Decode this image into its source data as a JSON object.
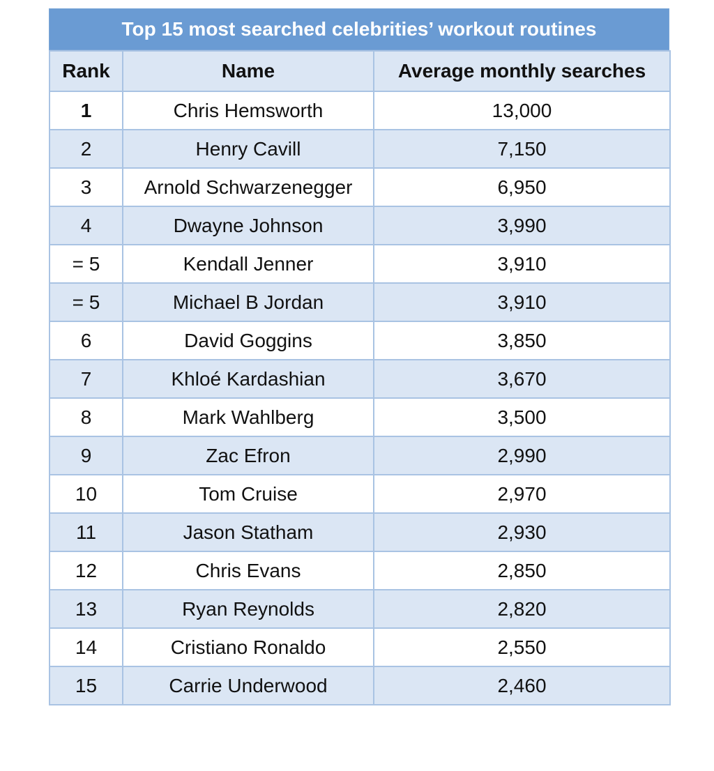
{
  "table": {
    "title": "Top 15 most searched celebrities’ workout routines",
    "headers": [
      "Rank",
      "Name",
      "Average monthly searches"
    ],
    "rows": [
      {
        "rank": "1",
        "name": "Chris Hemsworth",
        "searches": "13,000"
      },
      {
        "rank": "2",
        "name": "Henry Cavill",
        "searches": "7,150"
      },
      {
        "rank": "3",
        "name": "Arnold Schwarzenegger",
        "searches": "6,950"
      },
      {
        "rank": "4",
        "name": "Dwayne Johnson",
        "searches": "3,990"
      },
      {
        "rank": "= 5",
        "name": "Kendall Jenner",
        "searches": "3,910"
      },
      {
        "rank": "= 5",
        "name": "Michael B Jordan",
        "searches": "3,910"
      },
      {
        "rank": "6",
        "name": "David Goggins",
        "searches": "3,850"
      },
      {
        "rank": "7",
        "name": "Khloé Kardashian",
        "searches": "3,670"
      },
      {
        "rank": "8",
        "name": "Mark Wahlberg",
        "searches": "3,500"
      },
      {
        "rank": "9",
        "name": "Zac Efron",
        "searches": "2,990"
      },
      {
        "rank": "10",
        "name": "Tom Cruise",
        "searches": "2,970"
      },
      {
        "rank": "11",
        "name": "Jason Statham",
        "searches": "2,930"
      },
      {
        "rank": "12",
        "name": "Chris Evans",
        "searches": "2,850"
      },
      {
        "rank": "13",
        "name": "Ryan Reynolds",
        "searches": "2,820"
      },
      {
        "rank": "14",
        "name": "Cristiano Ronaldo",
        "searches": "2,550"
      },
      {
        "rank": "15",
        "name": "Carrie Underwood",
        "searches": "2,460"
      }
    ]
  },
  "colors": {
    "title_bg": "#6a9bd3",
    "header_bg": "#dbe6f4",
    "stripe_bg": "#dbe6f4",
    "border": "#a9c3e3"
  }
}
